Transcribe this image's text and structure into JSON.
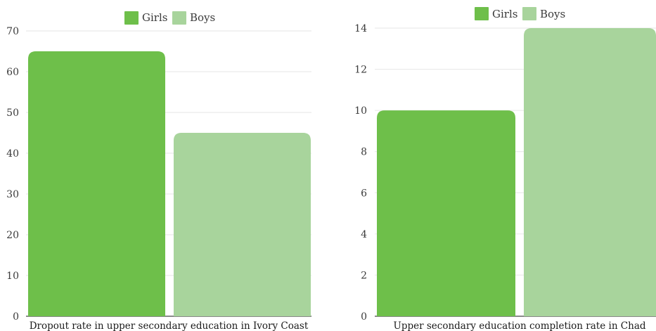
{
  "colors": {
    "girls": "#6ebf4a",
    "boys": "#a8d49c",
    "grid": "#e6e6e6",
    "axis": "#444444"
  },
  "chart_data": [
    {
      "type": "bar",
      "title": "",
      "xlabel": "Dropout rate in upper secondary education in Ivory Coast",
      "ylabel": "",
      "ylim": [
        0,
        70
      ],
      "yticks": [
        0,
        10,
        20,
        30,
        40,
        50,
        60,
        70
      ],
      "legend": "top-center",
      "grid": true,
      "series": [
        {
          "name": "Girls",
          "values": [
            65
          ]
        },
        {
          "name": "Boys",
          "values": [
            45
          ]
        }
      ]
    },
    {
      "type": "bar",
      "title": "",
      "xlabel": "Upper secondary education completion rate in Chad",
      "ylabel": "",
      "ylim": [
        0,
        14
      ],
      "yticks": [
        0,
        2,
        4,
        6,
        8,
        10,
        12,
        14
      ],
      "legend": "top-center",
      "grid": true,
      "series": [
        {
          "name": "Girls",
          "values": [
            10
          ]
        },
        {
          "name": "Boys",
          "values": [
            14
          ]
        }
      ]
    }
  ]
}
